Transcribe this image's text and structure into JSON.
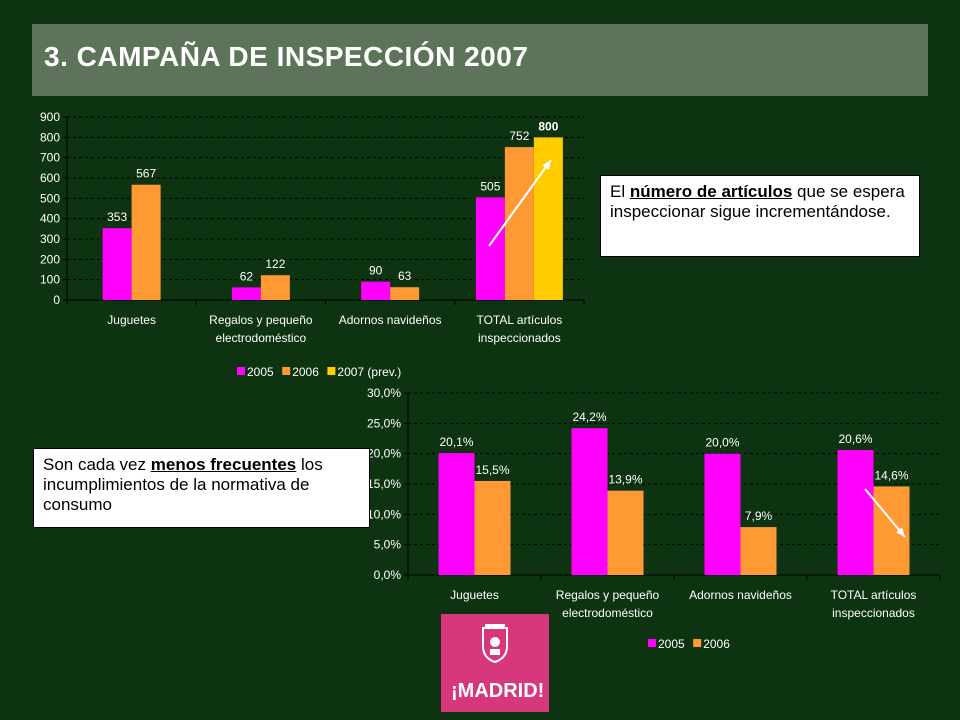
{
  "title": "3. CAMPAÑA DE INSPECCIÓN 2007",
  "colors": {
    "s2005": "#ff00ff",
    "s2006": "#ff9933",
    "s2007": "#ffcc00",
    "background": "#0d3310",
    "title_bar": "#5d745a"
  },
  "callouts": {
    "top": {
      "pre": "El ",
      "bold": "número de artículos",
      "post": " que se espera inspeccionar sigue incrementándose."
    },
    "bottom": {
      "pre": "Son cada vez ",
      "bold": "menos frecuentes",
      "post": " los incumplimientos de la normativa de consumo"
    }
  },
  "logo": {
    "text": "¡MADRID!",
    "icon": "madrid-coat-of-arms-icon"
  },
  "chart_data": [
    {
      "type": "bar",
      "categories": [
        "Juguetes",
        "Regalos y pequeño electrodoméstico",
        "Adornos navideños",
        "TOTAL artículos inspeccionados"
      ],
      "category_lines": [
        [
          "Juguetes"
        ],
        [
          "Regalos y pequeño",
          "electrodoméstico"
        ],
        [
          "Adornos navideños"
        ],
        [
          "TOTAL artículos",
          "inspeccionados"
        ]
      ],
      "series": [
        {
          "name": "2005",
          "values": [
            353,
            62,
            90,
            505
          ],
          "labels": [
            "353",
            "62",
            "90",
            "505"
          ]
        },
        {
          "name": "2006",
          "values": [
            567,
            122,
            63,
            752
          ],
          "labels": [
            "567",
            "122",
            "63",
            "752"
          ]
        },
        {
          "name": "2007 (prev.)",
          "values": [
            null,
            null,
            null,
            800
          ],
          "labels": [
            "",
            "",
            "",
            "800"
          ]
        }
      ],
      "ylim": [
        0,
        900
      ],
      "yticks": [
        0,
        100,
        200,
        300,
        400,
        500,
        600,
        700,
        800,
        900
      ],
      "ytick_labels": [
        "0",
        "100",
        "200",
        "300",
        "400",
        "500",
        "600",
        "700",
        "800",
        "900"
      ],
      "grid": true,
      "legend": "bottom",
      "arrow": "up"
    },
    {
      "type": "bar",
      "categories": [
        "Juguetes",
        "Regalos y pequeño electrodoméstico",
        "Adornos navideños",
        "TOTAL artículos inspeccionados"
      ],
      "category_lines": [
        [
          "Juguetes"
        ],
        [
          "Regalos y pequeño",
          "electrodoméstico"
        ],
        [
          "Adornos navideños"
        ],
        [
          "TOTAL artículos",
          "inspeccionados"
        ]
      ],
      "series": [
        {
          "name": "2005",
          "values": [
            20.1,
            24.2,
            20.0,
            20.6
          ],
          "labels": [
            "20,1%",
            "24,2%",
            "20,0%",
            "20,6%"
          ]
        },
        {
          "name": "2006",
          "values": [
            15.5,
            13.9,
            7.9,
            14.6
          ],
          "labels": [
            "15,5%",
            "13,9%",
            "7,9%",
            "14,6%"
          ]
        }
      ],
      "ylim": [
        0,
        30
      ],
      "yticks": [
        0,
        5,
        10,
        15,
        20,
        25,
        30
      ],
      "ytick_labels": [
        "0,0%",
        "5,0%",
        "10,0%",
        "15,0%",
        "20,0%",
        "25,0%",
        "30,0%"
      ],
      "grid": true,
      "legend": "bottom",
      "arrow": "down"
    }
  ]
}
